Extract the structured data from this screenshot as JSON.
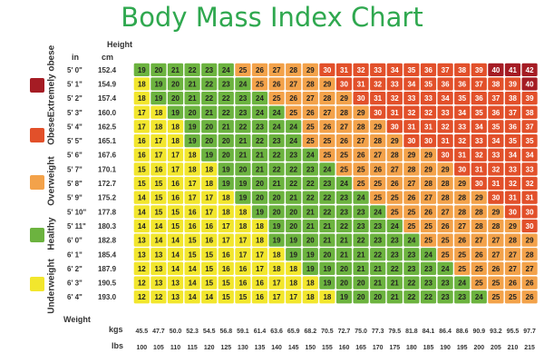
{
  "chart_data": {
    "type": "heatmap",
    "title": "Body Mass Index Chart",
    "ylabel": "Height",
    "xlabel": "Weight",
    "height_unit_in": "in",
    "height_unit_cm": "cm",
    "weight_unit_kg": "kgs",
    "weight_unit_lb": "lbs",
    "heights_in": [
      "5' 0\"",
      "5' 1\"",
      "5' 2\"",
      "5' 3\"",
      "5' 4\"",
      "5' 5\"",
      "5' 6\"",
      "5' 7\"",
      "5' 8\"",
      "5' 9\"",
      "5' 10\"",
      "5' 11\"",
      "6' 0\"",
      "6' 1\"",
      "6' 2\"",
      "6' 3\"",
      "6' 4\""
    ],
    "heights_cm": [
      "152.4",
      "154.9",
      "157.4",
      "160.0",
      "162.5",
      "165.1",
      "167.6",
      "170.1",
      "172.7",
      "175.2",
      "177.8",
      "180.3",
      "182.8",
      "185.4",
      "187.9",
      "190.5",
      "193.0"
    ],
    "weights_kg": [
      "45.5",
      "47.7",
      "50.0",
      "52.3",
      "54.5",
      "56.8",
      "59.1",
      "61.4",
      "63.6",
      "65.9",
      "68.2",
      "70.5",
      "72.7",
      "75.0",
      "77.3",
      "79.5",
      "81.8",
      "84.1",
      "86.4",
      "88.6",
      "90.9",
      "93.2",
      "95.5",
      "97.7"
    ],
    "weights_lb": [
      "100",
      "105",
      "110",
      "115",
      "120",
      "125",
      "130",
      "135",
      "140",
      "145",
      "150",
      "155",
      "160",
      "165",
      "170",
      "175",
      "180",
      "185",
      "190",
      "195",
      "200",
      "205",
      "210",
      "215"
    ],
    "bmi_values": [
      [
        19,
        20,
        21,
        22,
        23,
        24,
        25,
        26,
        27,
        28,
        29,
        30,
        31,
        32,
        33,
        34,
        35,
        36,
        37,
        38,
        39,
        40,
        41,
        42
      ],
      [
        18,
        19,
        20,
        21,
        22,
        23,
        24,
        25,
        26,
        27,
        28,
        29,
        30,
        31,
        32,
        33,
        34,
        35,
        36,
        36,
        37,
        38,
        39,
        40
      ],
      [
        18,
        19,
        20,
        21,
        22,
        22,
        23,
        24,
        25,
        26,
        27,
        28,
        29,
        30,
        31,
        32,
        33,
        33,
        34,
        35,
        36,
        37,
        38,
        39
      ],
      [
        17,
        18,
        19,
        20,
        21,
        22,
        23,
        24,
        24,
        25,
        26,
        27,
        28,
        29,
        30,
        31,
        32,
        32,
        33,
        34,
        35,
        36,
        37,
        38
      ],
      [
        17,
        18,
        18,
        19,
        20,
        21,
        22,
        23,
        24,
        24,
        25,
        26,
        27,
        28,
        29,
        30,
        31,
        31,
        32,
        33,
        34,
        35,
        36,
        37
      ],
      [
        16,
        17,
        18,
        19,
        20,
        20,
        21,
        22,
        23,
        24,
        25,
        25,
        26,
        27,
        28,
        29,
        30,
        30,
        31,
        32,
        33,
        34,
        35,
        35
      ],
      [
        16,
        17,
        17,
        18,
        19,
        20,
        21,
        21,
        22,
        23,
        24,
        25,
        25,
        26,
        27,
        28,
        29,
        29,
        30,
        31,
        32,
        33,
        34,
        34
      ],
      [
        15,
        16,
        17,
        18,
        18,
        19,
        20,
        21,
        22,
        22,
        23,
        24,
        25,
        25,
        26,
        27,
        28,
        29,
        29,
        30,
        31,
        32,
        33,
        33
      ],
      [
        15,
        15,
        16,
        17,
        18,
        19,
        19,
        20,
        21,
        22,
        22,
        23,
        24,
        25,
        25,
        26,
        27,
        28,
        28,
        29,
        30,
        31,
        32,
        32
      ],
      [
        14,
        15,
        16,
        17,
        17,
        18,
        19,
        20,
        20,
        21,
        22,
        22,
        23,
        24,
        25,
        25,
        26,
        27,
        28,
        28,
        29,
        30,
        31,
        31
      ],
      [
        14,
        15,
        15,
        16,
        17,
        18,
        18,
        19,
        20,
        20,
        21,
        22,
        23,
        23,
        24,
        25,
        25,
        26,
        27,
        28,
        28,
        29,
        30,
        30
      ],
      [
        14,
        14,
        15,
        16,
        16,
        17,
        18,
        18,
        19,
        20,
        21,
        21,
        22,
        23,
        23,
        24,
        25,
        25,
        26,
        27,
        28,
        28,
        29,
        30
      ],
      [
        13,
        14,
        14,
        15,
        16,
        17,
        17,
        18,
        19,
        19,
        20,
        21,
        21,
        22,
        23,
        23,
        24,
        25,
        25,
        26,
        27,
        27,
        28,
        29
      ],
      [
        13,
        13,
        14,
        15,
        15,
        16,
        17,
        17,
        18,
        19,
        19,
        20,
        21,
        21,
        22,
        23,
        23,
        24,
        25,
        25,
        26,
        27,
        27,
        28
      ],
      [
        12,
        13,
        14,
        14,
        15,
        16,
        16,
        17,
        18,
        18,
        19,
        19,
        20,
        21,
        21,
        22,
        23,
        23,
        24,
        25,
        25,
        26,
        27,
        27
      ],
      [
        12,
        13,
        13,
        14,
        15,
        15,
        16,
        16,
        17,
        18,
        18,
        19,
        20,
        20,
        21,
        21,
        22,
        23,
        23,
        24,
        25,
        25,
        26,
        26
      ],
      [
        12,
        12,
        13,
        14,
        14,
        15,
        15,
        16,
        17,
        17,
        18,
        18,
        19,
        20,
        20,
        21,
        22,
        22,
        23,
        23,
        24,
        25,
        25,
        26
      ]
    ],
    "legend": [
      {
        "label": "Extremely obese",
        "color": "#a51c24"
      },
      {
        "label": "Obese",
        "color": "#e2502a"
      },
      {
        "label": "Overweight",
        "color": "#f3a24a"
      },
      {
        "label": "Healthy",
        "color": "#6cb33f"
      },
      {
        "label": "Underweight",
        "color": "#f2e62d"
      }
    ],
    "category_colors": {
      "underweight": "#f2e62d",
      "healthy": "#6cb33f",
      "overweight": "#f3a24a",
      "obese": "#e2502a",
      "extremely_obese": "#a51c24"
    }
  }
}
